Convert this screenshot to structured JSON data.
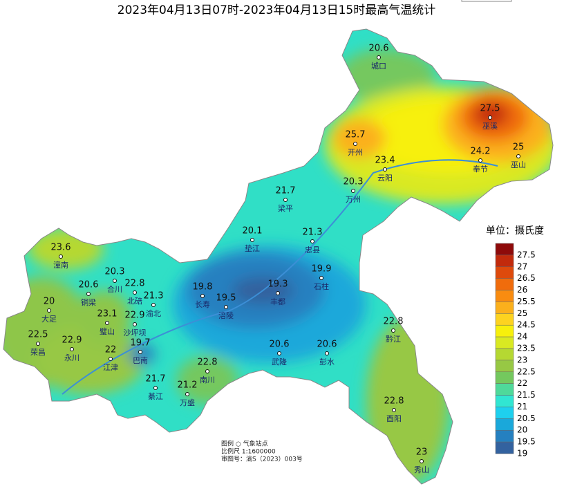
{
  "title": "2023年04月13日07时-2023年04月13日15时最高气温统计",
  "stations": [
    {
      "name": "城口",
      "value": 20.6
    },
    {
      "name": "巫溪",
      "value": 27.5
    },
    {
      "name": "开州",
      "value": 25.7
    },
    {
      "name": "奉节",
      "value": 24.2
    },
    {
      "name": "巫山",
      "value": 25
    },
    {
      "name": "云阳",
      "value": 23.4
    },
    {
      "name": "万州",
      "value": 20.3
    },
    {
      "name": "梁平",
      "value": 21.7
    },
    {
      "name": "垫江",
      "value": 20.1
    },
    {
      "name": "忠县",
      "value": 21.3
    },
    {
      "name": "潼南",
      "value": 23.6
    },
    {
      "name": "石柱",
      "value": 19.9
    },
    {
      "name": "合川",
      "value": 20.3
    },
    {
      "name": "铜梁",
      "value": 20.6
    },
    {
      "name": "北碚",
      "value": 22.8
    },
    {
      "name": "长寿",
      "value": 19.8
    },
    {
      "name": "丰都",
      "value": 19.3
    },
    {
      "name": "渝北",
      "value": 21.3
    },
    {
      "name": "涪陵",
      "value": 19.5
    },
    {
      "name": "大足",
      "value": 20
    },
    {
      "name": "璧山",
      "value": 23.1
    },
    {
      "name": "沙坪坝",
      "value": 22.9
    },
    {
      "name": "荣昌",
      "value": 22.5
    },
    {
      "name": "永川",
      "value": 22.9
    },
    {
      "name": "巴南",
      "value": 19.7
    },
    {
      "name": "武隆",
      "value": 20.6
    },
    {
      "name": "彭水",
      "value": 20.6
    },
    {
      "name": "江津",
      "value": 22
    },
    {
      "name": "黔江",
      "value": 22.8
    },
    {
      "name": "南川",
      "value": 22.8
    },
    {
      "name": "綦江",
      "value": 21.7
    },
    {
      "name": "万盛",
      "value": 21.2
    },
    {
      "name": "酉阳",
      "value": 22.8
    },
    {
      "name": "秀山",
      "value": 23
    }
  ],
  "legend": {
    "title": "单位：摄氏度",
    "levels": [
      {
        "value": 27.5,
        "color": "#8e0a0a"
      },
      {
        "value": 27,
        "color": "#c22a0c"
      },
      {
        "value": 26.5,
        "color": "#de4a0c"
      },
      {
        "value": 26,
        "color": "#f06c0c"
      },
      {
        "value": 25.5,
        "color": "#f98c10"
      },
      {
        "value": 25,
        "color": "#fbb01c"
      },
      {
        "value": 24.5,
        "color": "#fdd320"
      },
      {
        "value": 24,
        "color": "#f7f00c"
      },
      {
        "value": 23.5,
        "color": "#d9e922"
      },
      {
        "value": 23,
        "color": "#b5d832"
      },
      {
        "value": 22.5,
        "color": "#97c844"
      },
      {
        "value": 22,
        "color": "#74c85e"
      },
      {
        "value": 21.5,
        "color": "#4fd99a"
      },
      {
        "value": 21,
        "color": "#31e6d2"
      },
      {
        "value": 20.5,
        "color": "#1ed0ee"
      },
      {
        "value": 20,
        "color": "#1aa8da"
      },
      {
        "value": 19.5,
        "color": "#2580c0"
      },
      {
        "value": 19,
        "color": "#33629f"
      }
    ]
  },
  "notes": [
    "图例 ○ 气象站点",
    "比例尺 1:1600000",
    "审图号：渝S（2023）003号"
  ]
}
